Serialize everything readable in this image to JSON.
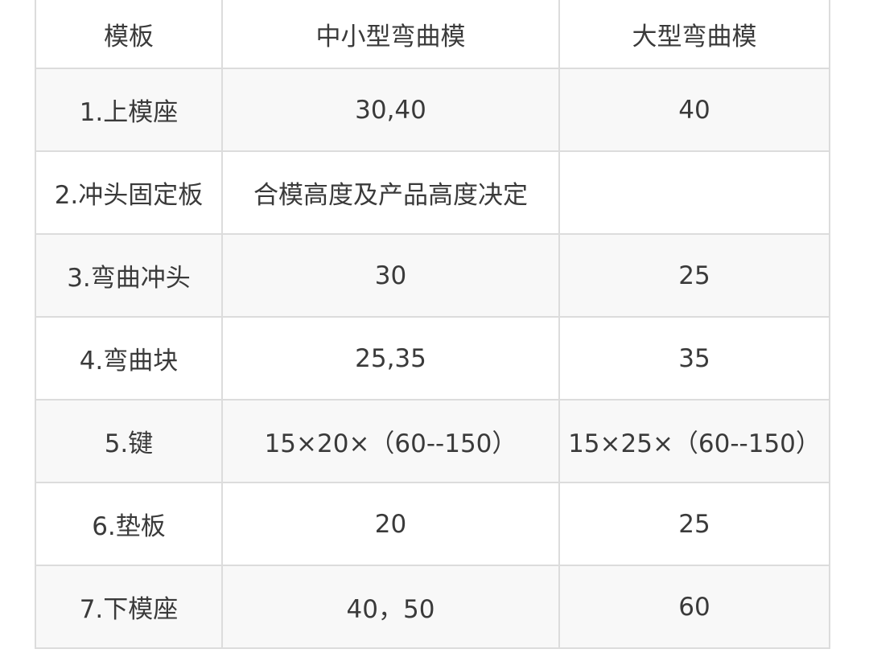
{
  "table": {
    "headers": [
      "模板",
      "中小型弯曲模",
      "大型弯曲模"
    ],
    "rows": [
      [
        "1.上模座",
        "30,40",
        "40"
      ],
      [
        "2.冲头固定板",
        "合模高度及产品高度决定",
        ""
      ],
      [
        "3.弯曲冲头",
        "30",
        "25"
      ],
      [
        "4.弯曲块",
        "25,35",
        "35"
      ],
      [
        "5.键",
        "15×20×（60--150）",
        "15×25×（60--150）"
      ],
      [
        "6.垫板",
        "20",
        "25"
      ],
      [
        "7.下模座",
        "40，50",
        "60"
      ]
    ]
  }
}
